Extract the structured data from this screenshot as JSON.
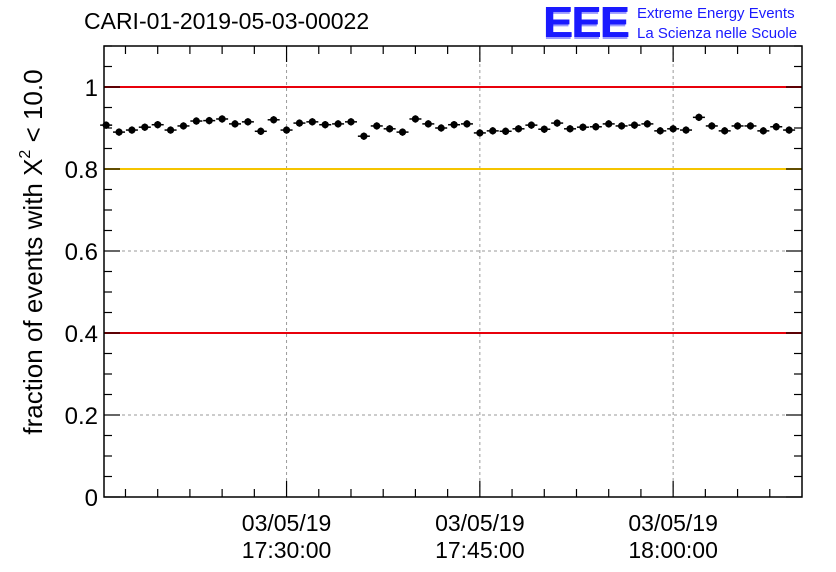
{
  "header": {
    "title": "CARI-01-2019-05-03-00022",
    "logo_letters": "EEE",
    "logo_line1": "Extreme Energy Events",
    "logo_line2": "La Scienza nelle Scuole"
  },
  "chart_data": {
    "type": "scatter",
    "title": "CARI-01-2019-05-03-00022",
    "ylabel_main": "fraction of events with X",
    "ylabel_sup": "2",
    "ylabel_tail": " < 10.0",
    "xlabel": "",
    "ylim": [
      0,
      1.1
    ],
    "xlim": [
      "2019-05-03 17:15:50",
      "2019-05-03 18:10:00"
    ],
    "x_ticks": [
      {
        "date": "03/05/19",
        "time": "17:30:00",
        "x": "2019-05-03 17:30:00"
      },
      {
        "date": "03/05/19",
        "time": "17:45:00",
        "x": "2019-05-03 17:45:00"
      },
      {
        "date": "03/05/19",
        "time": "18:00:00",
        "x": "2019-05-03 18:00:00"
      }
    ],
    "y_ticks": [
      "0",
      "0.2",
      "0.4",
      "0.6",
      "0.8",
      "1"
    ],
    "y_tick_values": [
      0,
      0.2,
      0.4,
      0.6,
      0.8,
      1.0
    ],
    "grid": true,
    "reference_lines": [
      {
        "y": 1.0,
        "color": "#e8000b"
      },
      {
        "y": 0.8,
        "color": "#f5c400"
      },
      {
        "y": 0.4,
        "color": "#e8000b"
      }
    ],
    "series": [
      {
        "marker_color": "#000000",
        "x": [
          "17:16:00",
          "17:17:00",
          "17:18:00",
          "17:19:00",
          "17:20:00",
          "17:21:00",
          "17:22:00",
          "17:23:00",
          "17:24:00",
          "17:25:00",
          "17:26:00",
          "17:27:00",
          "17:28:00",
          "17:29:00",
          "17:30:00",
          "17:31:00",
          "17:32:00",
          "17:33:00",
          "17:34:00",
          "17:35:00",
          "17:36:00",
          "17:37:00",
          "17:38:00",
          "17:39:00",
          "17:40:00",
          "17:41:00",
          "17:42:00",
          "17:43:00",
          "17:44:00",
          "17:45:00",
          "17:46:00",
          "17:47:00",
          "17:48:00",
          "17:49:00",
          "17:50:00",
          "17:51:00",
          "17:52:00",
          "17:53:00",
          "17:54:00",
          "17:55:00",
          "17:56:00",
          "17:57:00",
          "17:58:00",
          "17:59:00",
          "18:00:00",
          "18:01:00",
          "18:02:00",
          "18:03:00",
          "18:04:00",
          "18:05:00",
          "18:06:00",
          "18:07:00",
          "18:08:00",
          "18:09:00"
        ],
        "values": [
          0.907,
          0.89,
          0.895,
          0.902,
          0.908,
          0.895,
          0.905,
          0.917,
          0.918,
          0.922,
          0.91,
          0.915,
          0.892,
          0.92,
          0.895,
          0.912,
          0.915,
          0.908,
          0.91,
          0.915,
          0.88,
          0.905,
          0.898,
          0.89,
          0.922,
          0.91,
          0.9,
          0.908,
          0.91,
          0.888,
          0.893,
          0.892,
          0.898,
          0.907,
          0.897,
          0.912,
          0.898,
          0.902,
          0.903,
          0.91,
          0.905,
          0.907,
          0.91,
          0.893,
          0.898,
          0.895,
          0.926,
          0.905,
          0.893,
          0.905,
          0.905,
          0.893,
          0.903,
          0.895
        ],
        "errors": [
          0.009,
          0.009,
          0.009,
          0.009,
          0.009,
          0.009,
          0.009,
          0.009,
          0.009,
          0.009,
          0.009,
          0.009,
          0.009,
          0.009,
          0.009,
          0.009,
          0.009,
          0.009,
          0.009,
          0.009,
          0.009,
          0.009,
          0.009,
          0.009,
          0.009,
          0.009,
          0.009,
          0.009,
          0.009,
          0.009,
          0.009,
          0.009,
          0.009,
          0.009,
          0.009,
          0.009,
          0.009,
          0.009,
          0.009,
          0.009,
          0.009,
          0.009,
          0.009,
          0.009,
          0.009,
          0.009,
          0.009,
          0.009,
          0.009,
          0.009,
          0.009,
          0.009,
          0.009,
          0.009
        ]
      }
    ]
  }
}
